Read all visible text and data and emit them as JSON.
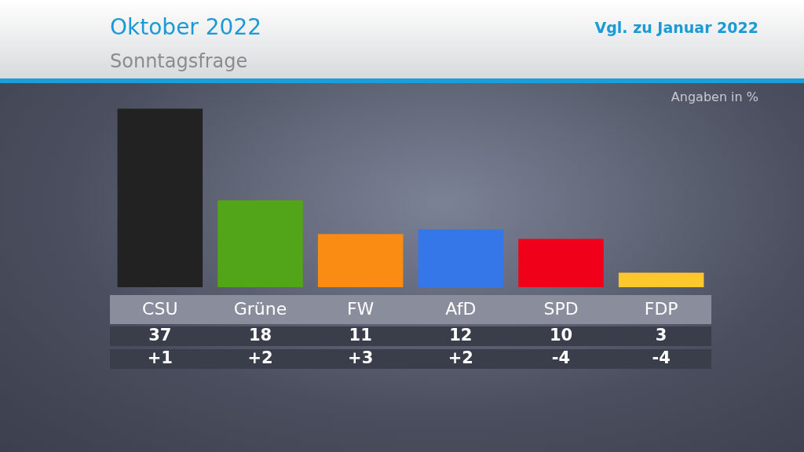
{
  "chart_data": {
    "type": "bar",
    "title": "Oktober 2022",
    "subtitle": "Sonntagsfrage",
    "categories": [
      "CSU",
      "Grüne",
      "FW",
      "AfD",
      "SPD",
      "FDP"
    ],
    "values": [
      37,
      18,
      11,
      12,
      10,
      3
    ],
    "colors": [
      "#222222",
      "#52a518",
      "#fb8c13",
      "#3577e8",
      "#f00019",
      "#fdc82b"
    ],
    "data_labels": true,
    "annotations": [
      "Vgl. zu Januar 2022",
      "Angaben in %",
      "+1",
      "+2",
      "+3",
      "+2",
      "-4",
      "-4"
    ]
  }
}
